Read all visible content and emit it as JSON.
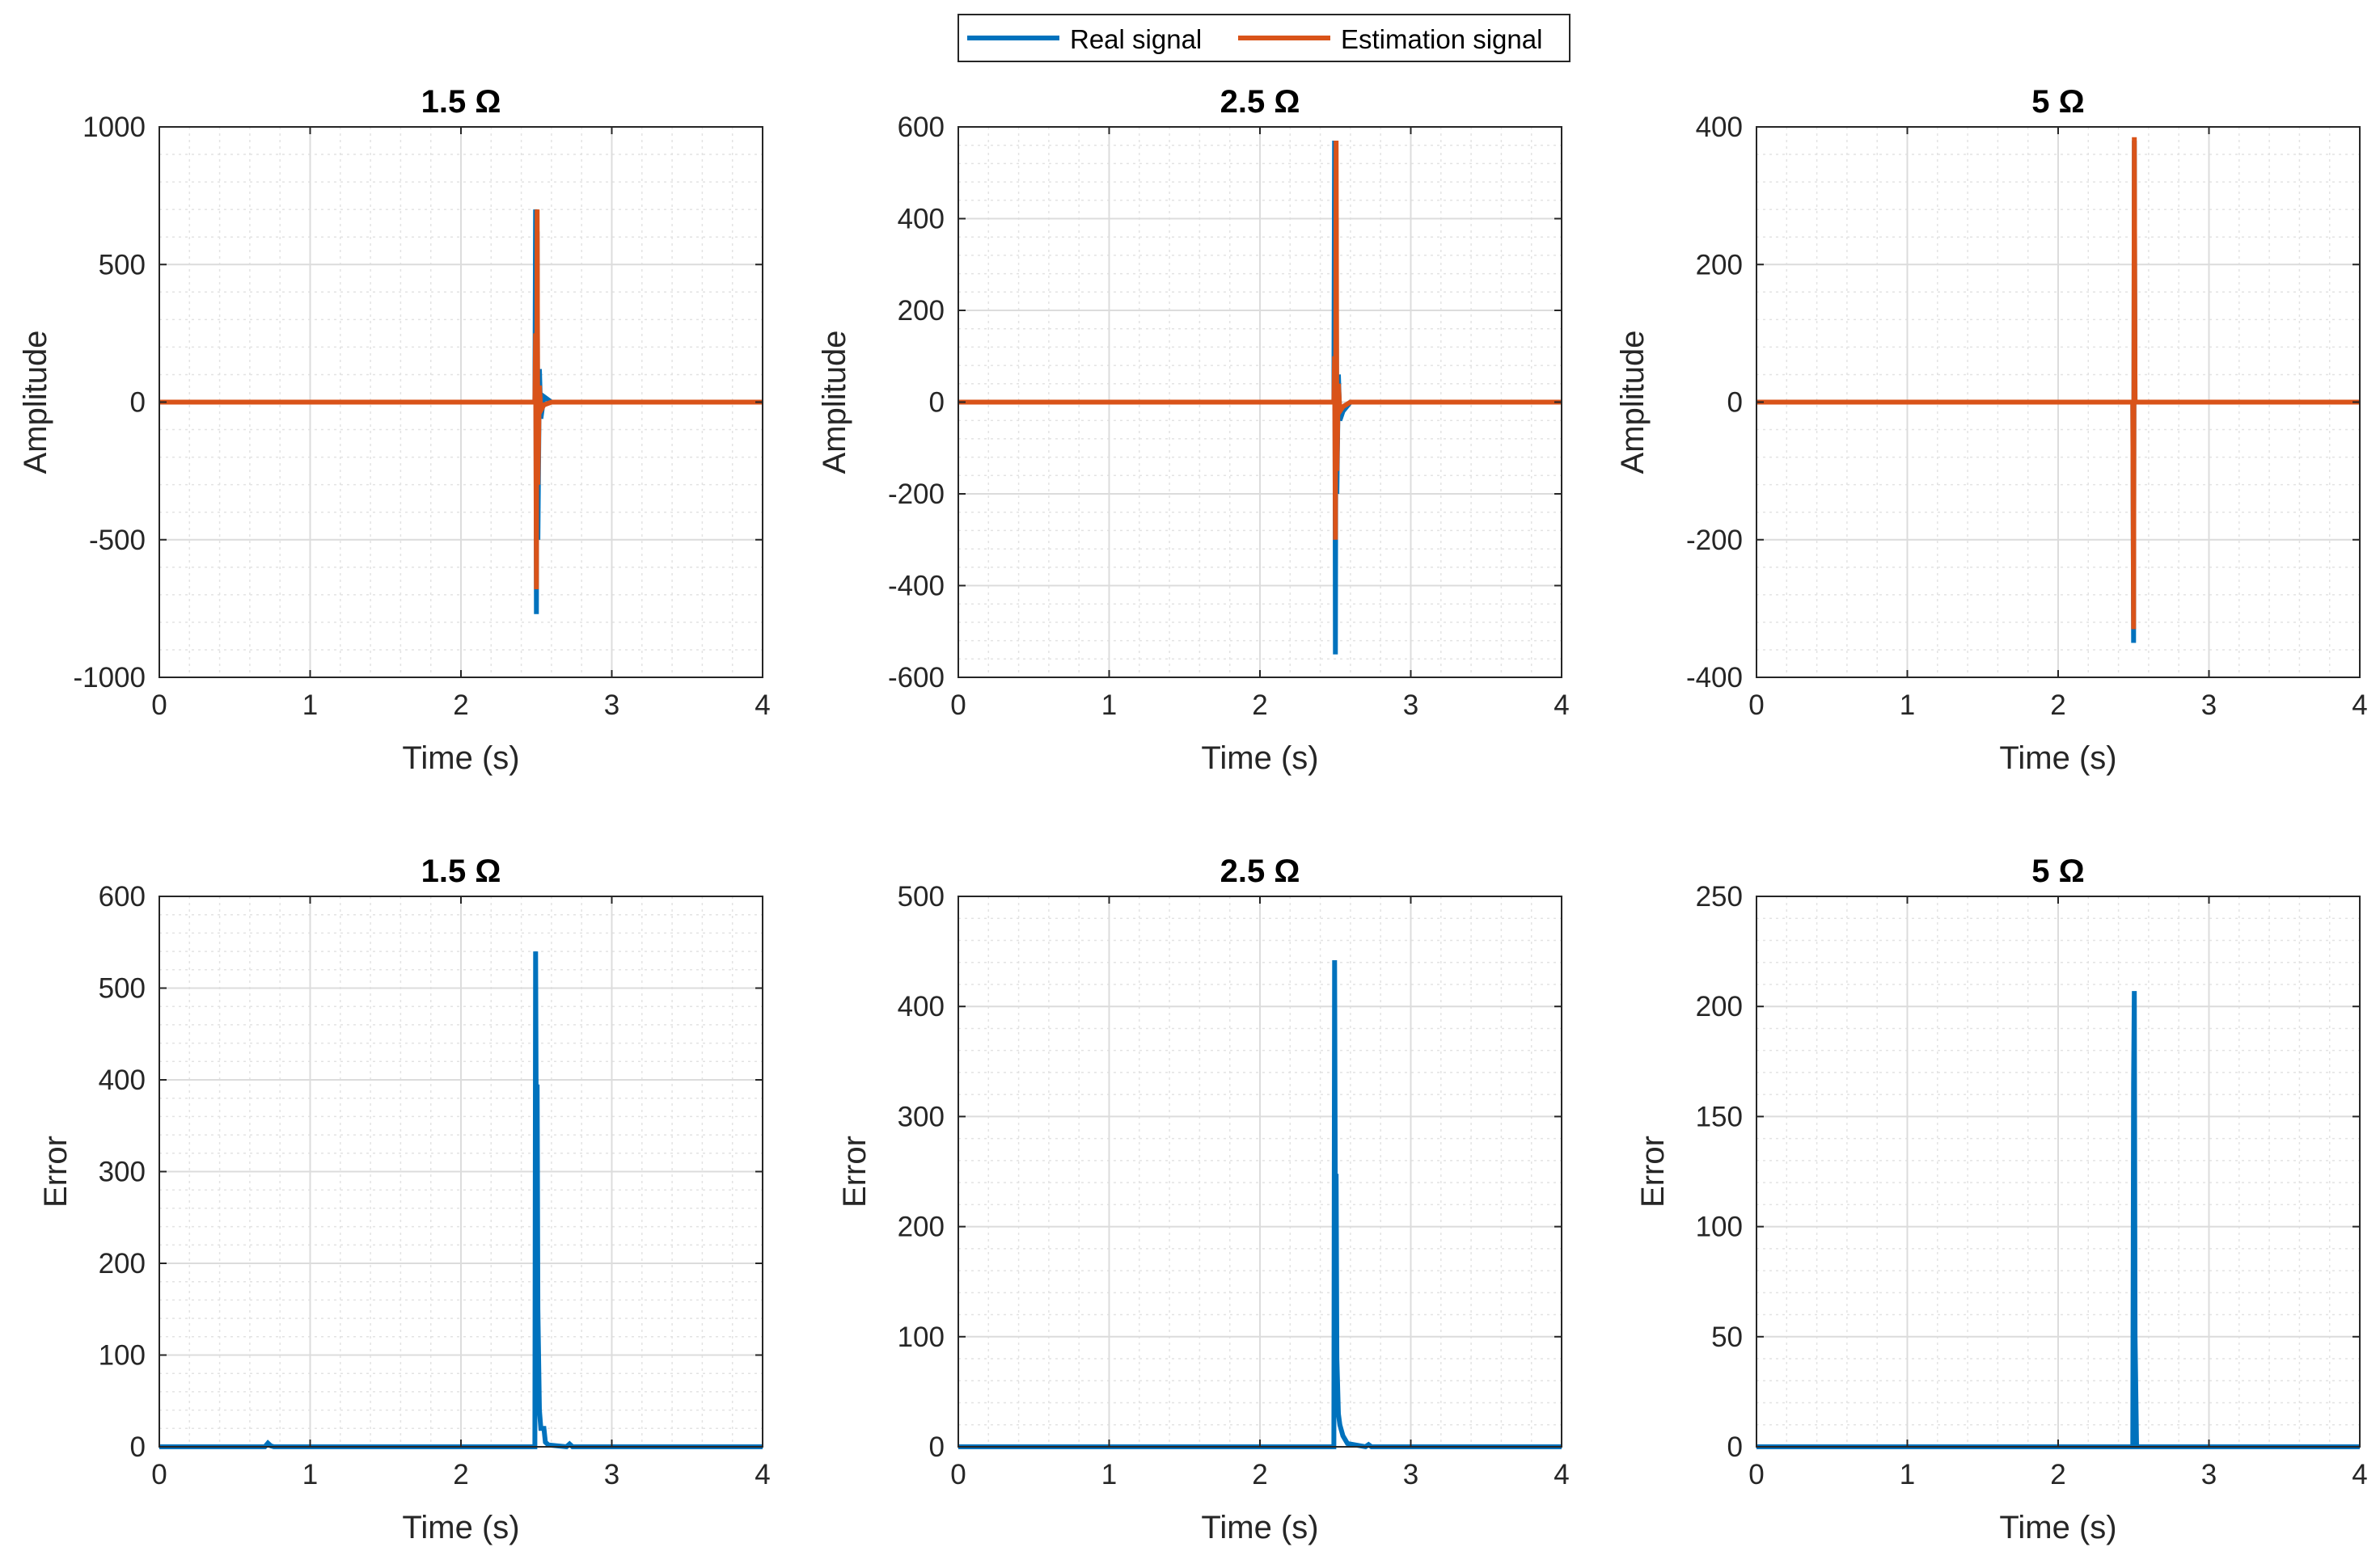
{
  "legend": {
    "entries": [
      {
        "label": "Real signal",
        "color": "#0072BD"
      },
      {
        "label": "Estimation signal",
        "color": "#D95319"
      }
    ],
    "placement": "top-center"
  },
  "chart_data": [
    {
      "type": "line",
      "title": "1.5 Ω",
      "xlabel": "Time (s)",
      "ylabel": "Amplitude",
      "xlim": [
        0,
        4
      ],
      "ylim": [
        -1000,
        1000
      ],
      "xticks": [
        0,
        1,
        2,
        3,
        4
      ],
      "yticks": [
        -1000,
        -500,
        0,
        500,
        1000
      ],
      "grid": true,
      "minor_grid": true,
      "series": [
        {
          "name": "Real signal",
          "color": "#0072BD",
          "x": [
            0,
            2.49,
            2.495,
            2.5,
            2.505,
            2.51,
            2.52,
            2.53,
            2.55,
            2.6,
            4
          ],
          "y": [
            0,
            0,
            700,
            -770,
            620,
            -500,
            120,
            -60,
            20,
            0,
            0
          ]
        },
        {
          "name": "Estimation signal",
          "color": "#D95319",
          "x": [
            0,
            2.49,
            2.495,
            2.5,
            2.505,
            2.51,
            2.52,
            2.53,
            2.55,
            2.6,
            4
          ],
          "y": [
            0,
            0,
            250,
            -680,
            700,
            -300,
            60,
            -30,
            -10,
            0,
            0
          ]
        }
      ]
    },
    {
      "type": "line",
      "title": "2.5 Ω",
      "xlabel": "Time (s)",
      "ylabel": "Amplitude",
      "xlim": [
        0,
        4
      ],
      "ylim": [
        -600,
        600
      ],
      "xticks": [
        0,
        1,
        2,
        3,
        4
      ],
      "yticks": [
        -600,
        -400,
        -200,
        0,
        200,
        400,
        600
      ],
      "grid": true,
      "minor_grid": true,
      "series": [
        {
          "name": "Real signal",
          "color": "#0072BD",
          "x": [
            0,
            2.49,
            2.495,
            2.5,
            2.505,
            2.51,
            2.52,
            2.53,
            2.55,
            2.6,
            4
          ],
          "y": [
            0,
            0,
            570,
            -550,
            400,
            -200,
            60,
            -40,
            -20,
            0,
            0
          ]
        },
        {
          "name": "Estimation signal",
          "color": "#D95319",
          "x": [
            0,
            2.49,
            2.495,
            2.5,
            2.505,
            2.51,
            2.52,
            2.53,
            2.55,
            2.6,
            4
          ],
          "y": [
            0,
            0,
            100,
            -300,
            570,
            -150,
            40,
            -20,
            -10,
            0,
            0
          ]
        }
      ]
    },
    {
      "type": "line",
      "title": "5 Ω",
      "xlabel": "Time (s)",
      "ylabel": "Amplitude",
      "xlim": [
        0,
        4
      ],
      "ylim": [
        -400,
        400
      ],
      "xticks": [
        0,
        1,
        2,
        3,
        4
      ],
      "yticks": [
        -400,
        -200,
        0,
        200,
        400
      ],
      "grid": true,
      "minor_grid": true,
      "series": [
        {
          "name": "Real signal",
          "color": "#0072BD",
          "x": [
            0,
            2.495,
            2.5,
            2.505,
            2.51,
            4
          ],
          "y": [
            0,
            0,
            -350,
            380,
            0,
            0
          ]
        },
        {
          "name": "Estimation signal",
          "color": "#D95319",
          "x": [
            0,
            2.495,
            2.5,
            2.505,
            2.51,
            4
          ],
          "y": [
            0,
            0,
            -330,
            385,
            0,
            0
          ]
        }
      ]
    },
    {
      "type": "line",
      "title": "1.5 Ω",
      "xlabel": "Time (s)",
      "ylabel": "Error",
      "xlim": [
        0,
        4
      ],
      "ylim": [
        0,
        600
      ],
      "xticks": [
        0,
        1,
        2,
        3,
        4
      ],
      "yticks": [
        0,
        100,
        200,
        300,
        400,
        500,
        600
      ],
      "grid": true,
      "minor_grid": true,
      "series": [
        {
          "name": "Error",
          "color": "#0072BD",
          "x": [
            0,
            0.7,
            0.72,
            0.74,
            0.76,
            2.49,
            2.495,
            2.5,
            2.505,
            2.51,
            2.52,
            2.53,
            2.55,
            2.56,
            2.58,
            2.7,
            2.72,
            2.74,
            4
          ],
          "y": [
            0,
            0,
            4,
            1,
            0,
            0,
            540,
            300,
            395,
            150,
            40,
            20,
            20,
            5,
            2,
            0,
            3,
            0,
            0
          ]
        }
      ]
    },
    {
      "type": "line",
      "title": "2.5 Ω",
      "xlabel": "Time (s)",
      "ylabel": "Error",
      "xlim": [
        0,
        4
      ],
      "ylim": [
        0,
        500
      ],
      "xticks": [
        0,
        1,
        2,
        3,
        4
      ],
      "yticks": [
        0,
        100,
        200,
        300,
        400,
        500
      ],
      "grid": true,
      "minor_grid": true,
      "series": [
        {
          "name": "Error",
          "color": "#0072BD",
          "x": [
            0,
            2.49,
            2.495,
            2.5,
            2.505,
            2.51,
            2.52,
            2.53,
            2.55,
            2.58,
            2.7,
            2.72,
            2.74,
            4
          ],
          "y": [
            0,
            0,
            442,
            200,
            248,
            80,
            30,
            20,
            10,
            3,
            0,
            2,
            0,
            0
          ]
        }
      ]
    },
    {
      "type": "line",
      "title": "5 Ω",
      "xlabel": "Time (s)",
      "ylabel": "Error",
      "xlim": [
        0,
        4
      ],
      "ylim": [
        0,
        250
      ],
      "xticks": [
        0,
        1,
        2,
        3,
        4
      ],
      "yticks": [
        0,
        50,
        100,
        150,
        200,
        250
      ],
      "grid": true,
      "minor_grid": true,
      "series": [
        {
          "name": "Error",
          "color": "#0072BD",
          "x": [
            0,
            2.495,
            2.5,
            2.505,
            2.51,
            2.52,
            4
          ],
          "y": [
            0,
            0,
            165,
            207,
            50,
            0,
            0
          ]
        }
      ]
    }
  ]
}
